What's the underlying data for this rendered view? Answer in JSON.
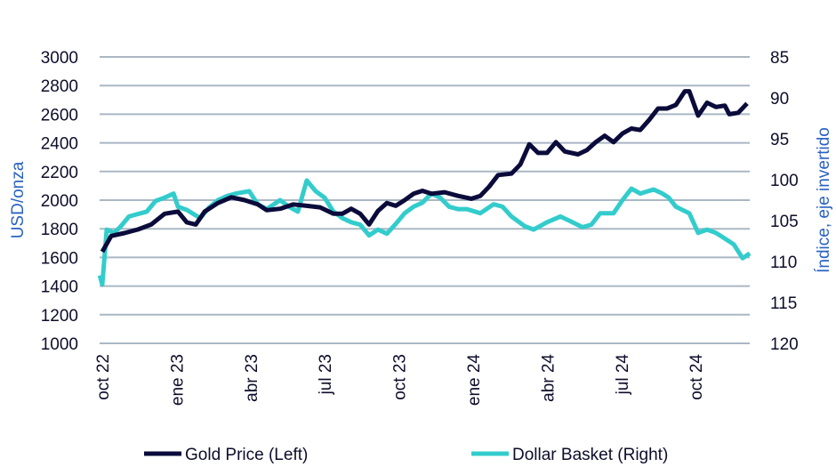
{
  "chart_data": {
    "type": "line",
    "x_unit": "months since oct 2022",
    "x_ticks": [
      "oct 22",
      "ene 23",
      "abr 23",
      "jul 23",
      "oct 23",
      "ene 24",
      "abr 24",
      "jul 24",
      "oct 24"
    ],
    "x_tick_months": [
      0,
      3,
      6,
      9,
      12,
      15,
      18,
      21,
      24
    ],
    "y_left": {
      "label": "USD/onza",
      "ylim": [
        1000,
        3000
      ],
      "ticks": [
        "1000",
        "1200",
        "1400",
        "1600",
        "1800",
        "2000",
        "2200",
        "2400",
        "2600",
        "2800",
        "3000"
      ]
    },
    "y_right": {
      "label": "Índice, eje invertido",
      "ylim": [
        85,
        120
      ],
      "inverted": true,
      "ticks": [
        "85",
        "90",
        "95",
        "100",
        "105",
        "110",
        "115",
        "120"
      ]
    },
    "grid": true,
    "legend_position": "bottom",
    "series": [
      {
        "name": "Gold Price (Left)",
        "axis": "left",
        "color": "#0b0b3b",
        "points": [
          [
            0,
            1640
          ],
          [
            0.36,
            1750
          ],
          [
            0.9,
            1770
          ],
          [
            1.44,
            1795
          ],
          [
            1.98,
            1830
          ],
          [
            2.52,
            1905
          ],
          [
            3.06,
            1920
          ],
          [
            3.42,
            1845
          ],
          [
            3.78,
            1830
          ],
          [
            4.14,
            1920
          ],
          [
            4.68,
            1980
          ],
          [
            5.22,
            2020
          ],
          [
            5.76,
            2000
          ],
          [
            6.29,
            1970
          ],
          [
            6.65,
            1930
          ],
          [
            7.19,
            1940
          ],
          [
            7.73,
            1970
          ],
          [
            8.27,
            1960
          ],
          [
            8.81,
            1950
          ],
          [
            9.35,
            1905
          ],
          [
            9.71,
            1905
          ],
          [
            10.07,
            1940
          ],
          [
            10.43,
            1905
          ],
          [
            10.79,
            1830
          ],
          [
            11.15,
            1925
          ],
          [
            11.51,
            1980
          ],
          [
            11.87,
            1960
          ],
          [
            12.23,
            2000
          ],
          [
            12.59,
            2045
          ],
          [
            12.95,
            2065
          ],
          [
            13.31,
            2045
          ],
          [
            13.85,
            2055
          ],
          [
            14.39,
            2030
          ],
          [
            14.93,
            2010
          ],
          [
            15.29,
            2030
          ],
          [
            15.65,
            2095
          ],
          [
            16.01,
            2175
          ],
          [
            16.55,
            2185
          ],
          [
            16.91,
            2250
          ],
          [
            17.27,
            2390
          ],
          [
            17.63,
            2330
          ],
          [
            17.99,
            2330
          ],
          [
            18.35,
            2405
          ],
          [
            18.71,
            2340
          ],
          [
            19.24,
            2320
          ],
          [
            19.6,
            2350
          ],
          [
            19.96,
            2405
          ],
          [
            20.32,
            2450
          ],
          [
            20.68,
            2405
          ],
          [
            21.04,
            2465
          ],
          [
            21.4,
            2500
          ],
          [
            21.76,
            2490
          ],
          [
            22.12,
            2560
          ],
          [
            22.48,
            2640
          ],
          [
            22.84,
            2640
          ],
          [
            23.2,
            2665
          ],
          [
            23.56,
            2760
          ],
          [
            23.74,
            2760
          ],
          [
            24.1,
            2590
          ],
          [
            24.46,
            2680
          ],
          [
            24.82,
            2650
          ],
          [
            25.18,
            2660
          ],
          [
            25.36,
            2600
          ],
          [
            25.72,
            2610
          ],
          [
            26.08,
            2675
          ]
        ]
      },
      {
        "name": "Dollar Basket (Right)",
        "axis": "right",
        "color": "#33cccc",
        "points": [
          [
            -0.1,
            111.7
          ],
          [
            0,
            112.8
          ],
          [
            0.18,
            106.1
          ],
          [
            0.47,
            106.5
          ],
          [
            0.72,
            105.8
          ],
          [
            1.08,
            104.5
          ],
          [
            1.44,
            104.2
          ],
          [
            1.8,
            103.9
          ],
          [
            2.16,
            102.6
          ],
          [
            2.52,
            102.2
          ],
          [
            2.88,
            101.7
          ],
          [
            3.06,
            103.3
          ],
          [
            3.42,
            103.7
          ],
          [
            3.96,
            104.7
          ],
          [
            4.32,
            103.4
          ],
          [
            4.68,
            102.5
          ],
          [
            5.04,
            102.0
          ],
          [
            5.4,
            101.7
          ],
          [
            5.94,
            101.4
          ],
          [
            6.29,
            103.0
          ],
          [
            6.65,
            103.6
          ],
          [
            7.19,
            102.5
          ],
          [
            7.55,
            103.3
          ],
          [
            7.91,
            103.9
          ],
          [
            8.27,
            100.1
          ],
          [
            8.63,
            101.4
          ],
          [
            8.99,
            102.2
          ],
          [
            9.35,
            103.9
          ],
          [
            9.71,
            104.7
          ],
          [
            10.07,
            105.2
          ],
          [
            10.43,
            105.5
          ],
          [
            10.79,
            106.8
          ],
          [
            11.15,
            106.1
          ],
          [
            11.51,
            106.6
          ],
          [
            11.87,
            105.4
          ],
          [
            12.23,
            104.1
          ],
          [
            12.59,
            103.3
          ],
          [
            12.95,
            102.8
          ],
          [
            13.31,
            101.7
          ],
          [
            13.67,
            102.2
          ],
          [
            14.03,
            103.3
          ],
          [
            14.39,
            103.6
          ],
          [
            14.75,
            103.6
          ],
          [
            15.29,
            104.1
          ],
          [
            15.83,
            103.0
          ],
          [
            16.19,
            103.3
          ],
          [
            16.55,
            104.5
          ],
          [
            17.09,
            105.7
          ],
          [
            17.45,
            106.1
          ],
          [
            17.99,
            105.2
          ],
          [
            18.53,
            104.5
          ],
          [
            18.88,
            105.0
          ],
          [
            19.42,
            105.8
          ],
          [
            19.78,
            105.5
          ],
          [
            20.14,
            104.1
          ],
          [
            20.68,
            104.1
          ],
          [
            21.04,
            102.5
          ],
          [
            21.4,
            101.1
          ],
          [
            21.76,
            101.7
          ],
          [
            22.3,
            101.2
          ],
          [
            22.66,
            101.7
          ],
          [
            22.91,
            102.2
          ],
          [
            23.2,
            103.3
          ],
          [
            23.74,
            104.1
          ],
          [
            24.1,
            106.5
          ],
          [
            24.46,
            106.1
          ],
          [
            24.82,
            106.5
          ],
          [
            25.18,
            107.2
          ],
          [
            25.54,
            107.9
          ],
          [
            25.9,
            109.6
          ],
          [
            26.19,
            109.0
          ]
        ]
      }
    ]
  }
}
